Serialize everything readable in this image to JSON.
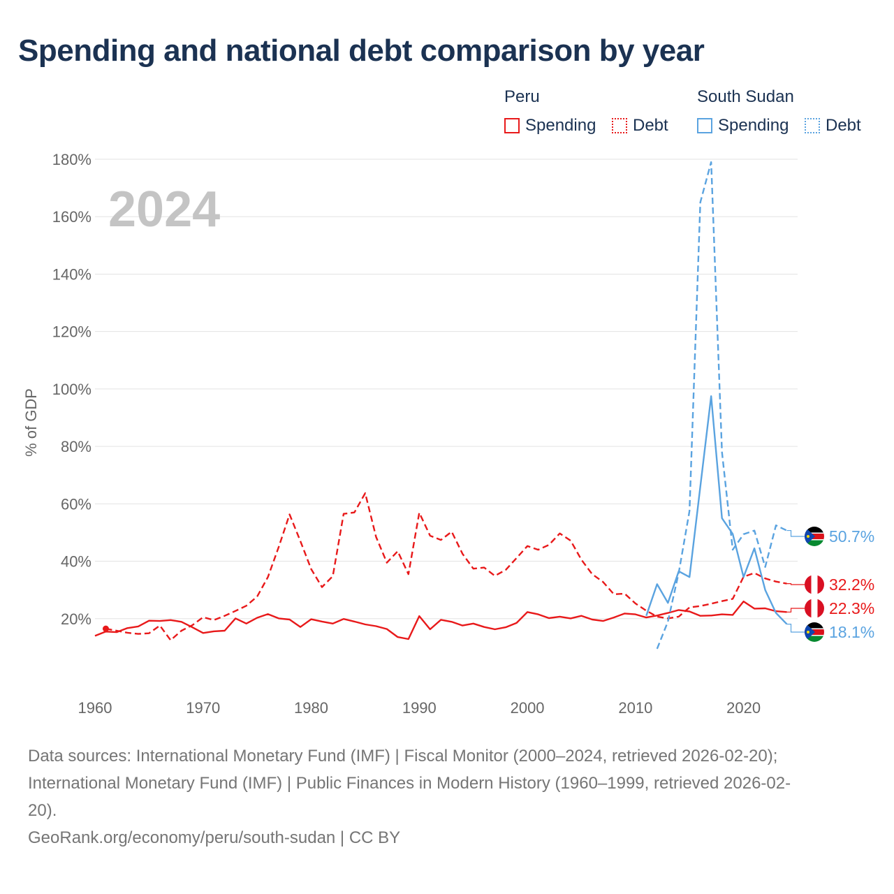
{
  "title": "Spending and national debt comparison by year",
  "legend": {
    "peru_title": "Peru",
    "south_sudan_title": "South Sudan",
    "spending_label": "Spending",
    "debt_label": "Debt"
  },
  "colors": {
    "peru": "#e8191a",
    "south_sudan": "#5aa3e0"
  },
  "chart_data": {
    "type": "line",
    "title": "Spending and national debt comparison by year",
    "year_label": "2024",
    "ylabel": "% of GDP",
    "xlabel": "",
    "xlim": [
      1960,
      2025
    ],
    "ylim": [
      0,
      180
    ],
    "x_ticks": [
      1960,
      1970,
      1980,
      1990,
      2000,
      2010,
      2020
    ],
    "y_ticks": [
      {
        "value": 20,
        "label": "20%"
      },
      {
        "value": 40,
        "label": "40%"
      },
      {
        "value": 60,
        "label": "60%"
      },
      {
        "value": 80,
        "label": "80%"
      },
      {
        "value": 100,
        "label": "100%"
      },
      {
        "value": 120,
        "label": "120%"
      },
      {
        "value": 140,
        "label": "140%"
      },
      {
        "value": 160,
        "label": "160%"
      },
      {
        "value": 180,
        "label": "180%"
      }
    ],
    "grid": true,
    "series": [
      {
        "name": "Peru Spending",
        "country": "peru",
        "style": "solid",
        "x": [
          1960,
          1961,
          1962,
          1963,
          1964,
          1965,
          1966,
          1967,
          1968,
          1969,
          1970,
          1971,
          1972,
          1973,
          1974,
          1975,
          1976,
          1977,
          1978,
          1979,
          1980,
          1981,
          1982,
          1983,
          1984,
          1985,
          1986,
          1987,
          1988,
          1989,
          1990,
          1991,
          1992,
          1993,
          1994,
          1995,
          1996,
          1997,
          1998,
          1999,
          2000,
          2001,
          2002,
          2003,
          2004,
          2005,
          2006,
          2007,
          2008,
          2009,
          2010,
          2011,
          2012,
          2013,
          2014,
          2015,
          2016,
          2017,
          2018,
          2019,
          2020,
          2021,
          2022,
          2023,
          2024
        ],
        "values": [
          14,
          15.5,
          15.3,
          16.7,
          17.3,
          19.3,
          19.2,
          19.5,
          18.9,
          17,
          15,
          15.6,
          15.8,
          20.1,
          18.3,
          20.3,
          21.6,
          20.1,
          19.7,
          17.1,
          19.8,
          19,
          18.3,
          19.9,
          19,
          18,
          17.4,
          16.4,
          13.6,
          12.9,
          20.9,
          16.3,
          19.6,
          18.9,
          17.6,
          18.3,
          17.1,
          16.3,
          17,
          18.5,
          22.3,
          21.5,
          20.2,
          20.7,
          20.1,
          21,
          19.7,
          19.2,
          20.4,
          21.8,
          21.5,
          20.4,
          21.1,
          22,
          23,
          22.5,
          21,
          21.1,
          21.5,
          21.3,
          26,
          23.5,
          23.6,
          22.6,
          22.3
        ],
        "end_label": "22.3%"
      },
      {
        "name": "Peru Debt",
        "country": "peru",
        "style": "dashed",
        "x": [
          1961,
          1962,
          1963,
          1964,
          1965,
          1966,
          1967,
          1968,
          1969,
          1970,
          1971,
          1972,
          1973,
          1974,
          1975,
          1976,
          1977,
          1978,
          1979,
          1980,
          1981,
          1982,
          1983,
          1984,
          1985,
          1986,
          1987,
          1988,
          1989,
          1990,
          1991,
          1992,
          1993,
          1994,
          1995,
          1996,
          1997,
          1998,
          1999,
          2000,
          2001,
          2002,
          2003,
          2004,
          2005,
          2006,
          2007,
          2008,
          2009,
          2010,
          2011,
          2012,
          2013,
          2014,
          2015,
          2016,
          2017,
          2018,
          2019,
          2020,
          2021,
          2022,
          2023,
          2024
        ],
        "values": [
          16.5,
          15.8,
          15.1,
          14.7,
          14.9,
          17.6,
          12.5,
          15.8,
          17.7,
          20.5,
          19.5,
          21,
          22.7,
          24.5,
          27.7,
          34.5,
          45,
          56.3,
          47,
          37.3,
          31,
          34.8,
          56.5,
          57,
          63.7,
          48.5,
          39.5,
          43.5,
          35.5,
          56.9,
          48.9,
          47.4,
          50.3,
          42.6,
          37.4,
          37.8,
          34.9,
          37,
          41.1,
          45.3,
          44,
          45.7,
          49.7,
          47.2,
          40.5,
          35.5,
          32.8,
          28.5,
          28.7,
          25.3,
          22.8,
          20.7,
          20.1,
          20.7,
          23.9,
          24.4,
          25.2,
          26.1,
          26.9,
          34.6,
          35.9,
          34,
          32.9,
          32.2
        ],
        "end_label": "32.2%"
      },
      {
        "name": "South Sudan Spending",
        "country": "south_sudan",
        "style": "solid",
        "x": [
          2011,
          2012,
          2013,
          2014,
          2015,
          2016,
          2017,
          2018,
          2019,
          2020,
          2021,
          2022,
          2023,
          2024
        ],
        "values": [
          21,
          32,
          25.5,
          36.5,
          34.5,
          66,
          97.5,
          55,
          49.5,
          34.5,
          44.5,
          30,
          22,
          18.1
        ],
        "end_label": "18.1%"
      },
      {
        "name": "South Sudan Debt",
        "country": "south_sudan",
        "style": "dashed",
        "x": [
          2012,
          2013,
          2014,
          2015,
          2016,
          2017,
          2018,
          2019,
          2020,
          2021,
          2022,
          2023,
          2024
        ],
        "values": [
          9.5,
          19,
          36,
          57.5,
          165,
          179,
          78,
          44,
          49.4,
          50.7,
          38,
          52.5,
          50.7
        ],
        "end_label": "50.7%"
      }
    ]
  },
  "footer": {
    "line1": "Data sources: International Monetary Fund (IMF) | Fiscal Monitor (2000–2024, retrieved 2026-02-20);",
    "line2": "International Monetary Fund (IMF) | Public Finances in Modern History (1960–1999, retrieved 2026-02-",
    "line3": "20).",
    "line4": "GeoRank.org/economy/peru/south-sudan | CC BY"
  }
}
